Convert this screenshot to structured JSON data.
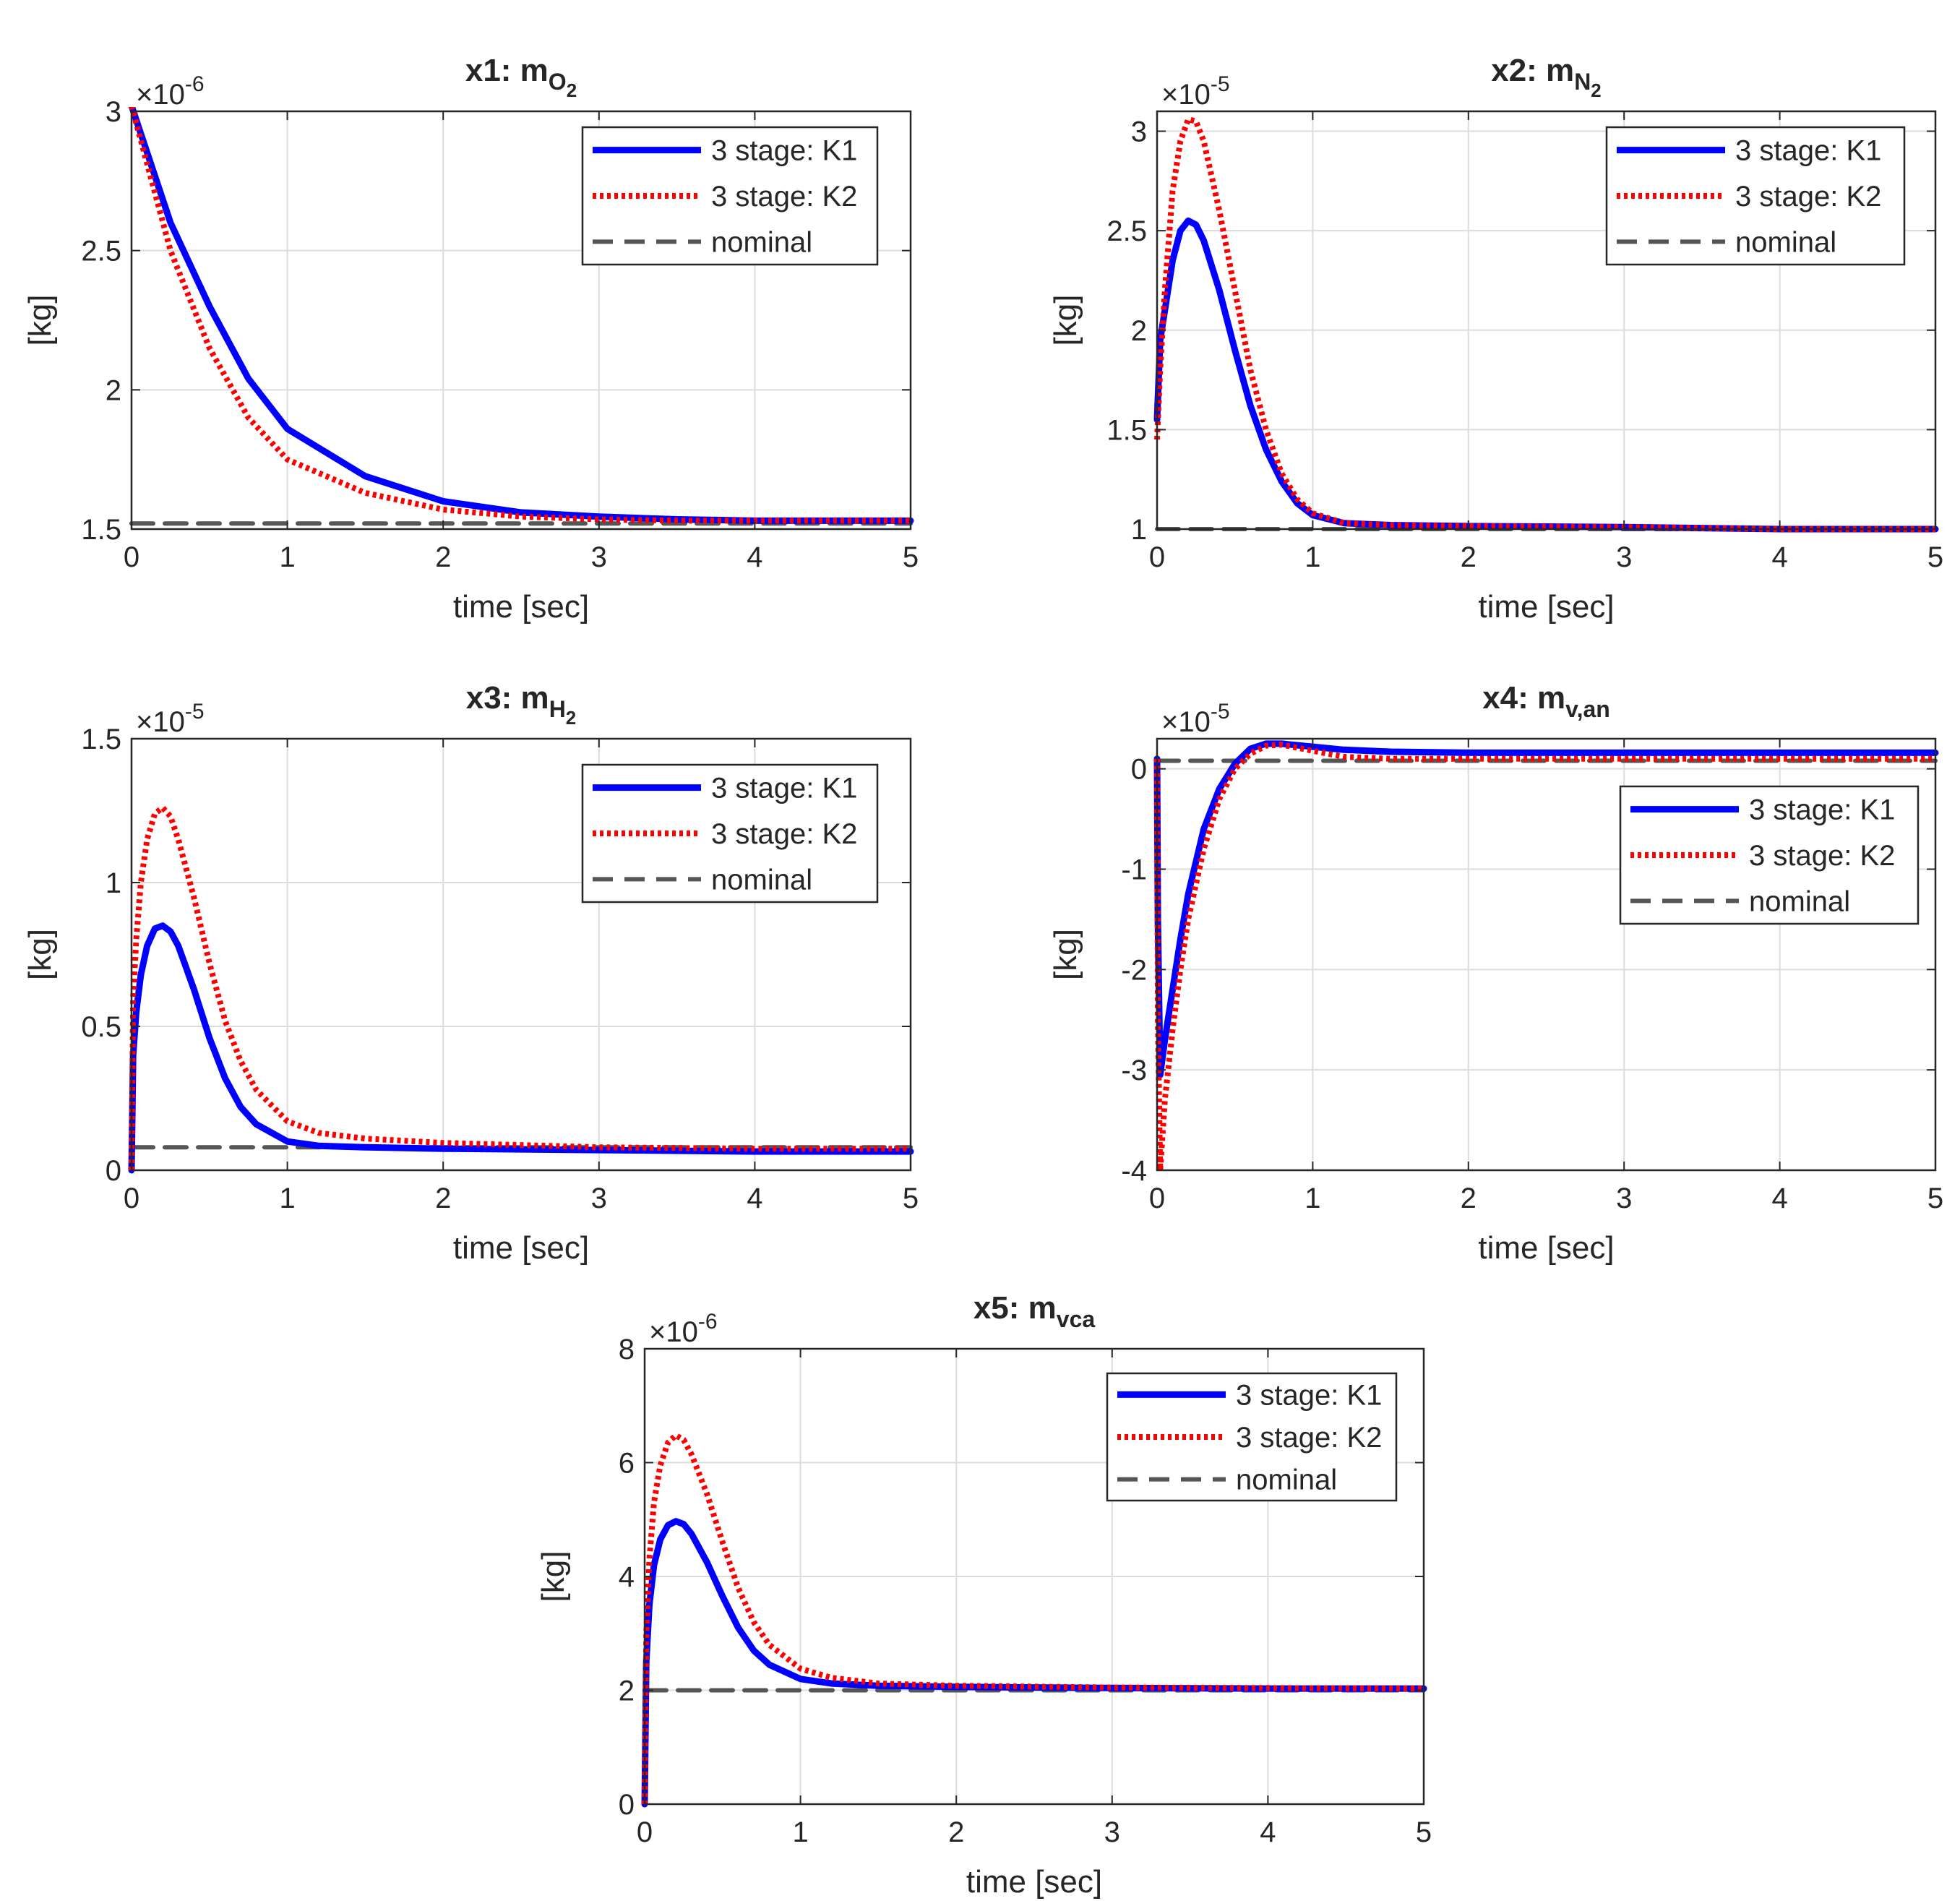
{
  "figure": {
    "colors": {
      "k1": "#0000ff",
      "k2": "#ff0000",
      "nominal": "#555555",
      "grid": "#dcdcdc",
      "axis": "#262626"
    }
  },
  "chart_data": [
    {
      "type": "line",
      "title_main": "x1: m",
      "title_sub": "O",
      "title_subsub": "2",
      "xlabel": "time [sec]",
      "ylabel": "[kg]",
      "exponent_base": "×10",
      "exponent_power": "-6",
      "xlim": [
        0,
        5
      ],
      "ylim": [
        1.5,
        3
      ],
      "xticks": [
        0,
        1,
        2,
        3,
        4,
        5
      ],
      "xtick_labels": [
        "0",
        "1",
        "2",
        "3",
        "4",
        "5"
      ],
      "yticks": [
        1.5,
        2,
        2.5,
        3
      ],
      "ytick_labels": [
        "1.5",
        "2",
        "2.5",
        "3"
      ],
      "legend": [
        "3 stage: K1",
        "3 stage: K2",
        "nominal"
      ],
      "series": [
        {
          "name": "3 stage: K1",
          "x": [
            0,
            0.25,
            0.5,
            0.75,
            1,
            1.5,
            2,
            2.5,
            3,
            3.5,
            4,
            4.5,
            5
          ],
          "y": [
            3.02,
            2.6,
            2.3,
            2.04,
            1.86,
            1.69,
            1.6,
            1.56,
            1.545,
            1.535,
            1.53,
            1.53,
            1.53
          ]
        },
        {
          "name": "3 stage: K2",
          "x": [
            0,
            0.25,
            0.5,
            0.75,
            1,
            1.5,
            2,
            2.5,
            3,
            3.5,
            4,
            4.5,
            5
          ],
          "y": [
            3.02,
            2.5,
            2.15,
            1.9,
            1.75,
            1.63,
            1.57,
            1.545,
            1.535,
            1.53,
            1.53,
            1.53,
            1.53
          ]
        },
        {
          "name": "nominal",
          "x": [
            0,
            5
          ],
          "y": [
            1.52,
            1.52
          ]
        }
      ]
    },
    {
      "type": "line",
      "title_main": "x2: m",
      "title_sub": "N",
      "title_subsub": "2",
      "xlabel": "time [sec]",
      "ylabel": "[kg]",
      "exponent_base": "×10",
      "exponent_power": "-5",
      "xlim": [
        0,
        5
      ],
      "ylim": [
        1,
        3.1
      ],
      "xticks": [
        0,
        1,
        2,
        3,
        4,
        5
      ],
      "xtick_labels": [
        "0",
        "1",
        "2",
        "3",
        "4",
        "5"
      ],
      "yticks": [
        1,
        1.5,
        2,
        2.5,
        3
      ],
      "ytick_labels": [
        "1",
        "1.5",
        "2",
        "2.5",
        "3"
      ],
      "legend": [
        "3 stage: K1",
        "3 stage: K2",
        "nominal"
      ],
      "series": [
        {
          "name": "3 stage: K1",
          "x": [
            0,
            0.02,
            0.05,
            0.1,
            0.15,
            0.2,
            0.25,
            0.3,
            0.4,
            0.5,
            0.6,
            0.7,
            0.8,
            0.9,
            1.0,
            1.2,
            1.5,
            2,
            3,
            4,
            5
          ],
          "y": [
            1.55,
            1.95,
            2.1,
            2.35,
            2.5,
            2.55,
            2.53,
            2.45,
            2.2,
            1.9,
            1.62,
            1.4,
            1.24,
            1.13,
            1.07,
            1.03,
            1.02,
            1.015,
            1.01,
            1.0,
            1.0
          ]
        },
        {
          "name": "3 stage: K2",
          "x": [
            0,
            0.02,
            0.05,
            0.1,
            0.15,
            0.2,
            0.25,
            0.3,
            0.4,
            0.5,
            0.6,
            0.7,
            0.8,
            0.9,
            1.0,
            1.2,
            1.5,
            2,
            3,
            4,
            5
          ],
          "y": [
            1.45,
            1.8,
            2.2,
            2.7,
            2.95,
            3.06,
            3.05,
            2.95,
            2.6,
            2.2,
            1.8,
            1.5,
            1.28,
            1.15,
            1.08,
            1.03,
            1.02,
            1.015,
            1.01,
            1.0,
            1.0
          ]
        },
        {
          "name": "nominal",
          "x": [
            0,
            5
          ],
          "y": [
            1.0,
            1.0
          ]
        }
      ]
    },
    {
      "type": "line",
      "title_main": "x3: m",
      "title_sub": "H",
      "title_subsub": "2",
      "xlabel": "time [sec]",
      "ylabel": "[kg]",
      "exponent_base": "×10",
      "exponent_power": "-5",
      "xlim": [
        0,
        5
      ],
      "ylim": [
        0,
        1.5
      ],
      "xticks": [
        0,
        1,
        2,
        3,
        4,
        5
      ],
      "xtick_labels": [
        "0",
        "1",
        "2",
        "3",
        "4",
        "5"
      ],
      "yticks": [
        0,
        0.5,
        1,
        1.5
      ],
      "ytick_labels": [
        "0",
        "0.5",
        "1",
        "1.5"
      ],
      "legend": [
        "3 stage: K1",
        "3 stage: K2",
        "nominal"
      ],
      "series": [
        {
          "name": "3 stage: K1",
          "x": [
            0,
            0.01,
            0.03,
            0.06,
            0.1,
            0.15,
            0.2,
            0.25,
            0.3,
            0.4,
            0.5,
            0.6,
            0.7,
            0.8,
            1.0,
            1.2,
            1.5,
            2,
            3,
            4,
            5
          ],
          "y": [
            0,
            0.4,
            0.55,
            0.68,
            0.78,
            0.84,
            0.85,
            0.83,
            0.78,
            0.63,
            0.46,
            0.32,
            0.22,
            0.16,
            0.1,
            0.085,
            0.08,
            0.075,
            0.07,
            0.065,
            0.065
          ]
        },
        {
          "name": "3 stage: K2",
          "x": [
            0,
            0.01,
            0.03,
            0.06,
            0.1,
            0.15,
            0.2,
            0.25,
            0.3,
            0.4,
            0.5,
            0.6,
            0.7,
            0.8,
            1.0,
            1.2,
            1.5,
            2,
            3,
            4,
            5
          ],
          "y": [
            0,
            0.6,
            0.8,
            1.0,
            1.15,
            1.24,
            1.26,
            1.23,
            1.15,
            0.95,
            0.72,
            0.52,
            0.38,
            0.28,
            0.17,
            0.13,
            0.11,
            0.095,
            0.08,
            0.075,
            0.075
          ]
        },
        {
          "name": "nominal",
          "x": [
            0,
            5
          ],
          "y": [
            0.08,
            0.08
          ]
        }
      ]
    },
    {
      "type": "line",
      "title_main": "x4: m",
      "title_sub": "v,an",
      "title_subsub": "",
      "xlabel": "time [sec]",
      "ylabel": "[kg]",
      "exponent_base": "×10",
      "exponent_power": "-5",
      "xlim": [
        0,
        5
      ],
      "ylim": [
        -4,
        0.3
      ],
      "xticks": [
        0,
        1,
        2,
        3,
        4,
        5
      ],
      "xtick_labels": [
        "0",
        "1",
        "2",
        "3",
        "4",
        "5"
      ],
      "yticks": [
        -4,
        -3,
        -2,
        -1,
        0
      ],
      "ytick_labels": [
        "-4",
        "-3",
        "-2",
        "-1",
        "0"
      ],
      "legend": [
        "3 stage: K1",
        "3 stage: K2",
        "nominal"
      ],
      "series": [
        {
          "name": "3 stage: K1",
          "x": [
            0,
            0.005,
            0.02,
            0.05,
            0.1,
            0.15,
            0.2,
            0.3,
            0.4,
            0.5,
            0.6,
            0.7,
            0.8,
            1.0,
            1.2,
            1.5,
            2,
            3,
            4,
            5
          ],
          "y": [
            0.1,
            -1.5,
            -3.05,
            -2.7,
            -2.2,
            -1.7,
            -1.25,
            -0.6,
            -0.2,
            0.05,
            0.2,
            0.25,
            0.25,
            0.22,
            0.19,
            0.17,
            0.16,
            0.16,
            0.16,
            0.16
          ]
        },
        {
          "name": "3 stage: K2",
          "x": [
            0,
            0.005,
            0.02,
            0.05,
            0.1,
            0.15,
            0.2,
            0.3,
            0.4,
            0.5,
            0.6,
            0.7,
            0.8,
            1.0,
            1.2,
            1.5,
            2,
            3,
            4,
            5
          ],
          "y": [
            0.1,
            -2.5,
            -4.0,
            -3.3,
            -2.6,
            -2.0,
            -1.5,
            -0.8,
            -0.3,
            0.0,
            0.15,
            0.23,
            0.24,
            0.18,
            0.12,
            0.1,
            0.1,
            0.1,
            0.1,
            0.1
          ]
        },
        {
          "name": "nominal",
          "x": [
            0,
            5
          ],
          "y": [
            0.08,
            0.08
          ]
        }
      ]
    },
    {
      "type": "line",
      "title_main": "x5: m",
      "title_sub": "vca",
      "title_subsub": "",
      "xlabel": "time [sec]",
      "ylabel": "[kg]",
      "exponent_base": "×10",
      "exponent_power": "-6",
      "xlim": [
        0,
        5
      ],
      "ylim": [
        0,
        8
      ],
      "xticks": [
        0,
        1,
        2,
        3,
        4,
        5
      ],
      "xtick_labels": [
        "0",
        "1",
        "2",
        "3",
        "4",
        "5"
      ],
      "yticks": [
        0,
        2,
        4,
        6,
        8
      ],
      "ytick_labels": [
        "0",
        "2",
        "4",
        "6",
        "8"
      ],
      "legend": [
        "3 stage: K1",
        "3 stage: K2",
        "nominal"
      ],
      "series": [
        {
          "name": "3 stage: K1",
          "x": [
            0,
            0.01,
            0.03,
            0.06,
            0.1,
            0.15,
            0.2,
            0.25,
            0.3,
            0.4,
            0.5,
            0.6,
            0.7,
            0.8,
            1.0,
            1.2,
            1.5,
            2,
            3,
            4,
            5
          ],
          "y": [
            0,
            2.5,
            3.5,
            4.2,
            4.65,
            4.9,
            4.97,
            4.92,
            4.75,
            4.25,
            3.65,
            3.1,
            2.7,
            2.45,
            2.2,
            2.12,
            2.08,
            2.06,
            2.04,
            2.03,
            2.03
          ]
        },
        {
          "name": "3 stage: K2",
          "x": [
            0,
            0.01,
            0.03,
            0.06,
            0.1,
            0.15,
            0.2,
            0.25,
            0.3,
            0.4,
            0.5,
            0.6,
            0.7,
            0.8,
            1.0,
            1.2,
            1.5,
            2,
            3,
            4,
            5
          ],
          "y": [
            0,
            3.0,
            4.3,
            5.3,
            5.95,
            6.35,
            6.48,
            6.4,
            6.15,
            5.45,
            4.6,
            3.8,
            3.2,
            2.8,
            2.38,
            2.22,
            2.12,
            2.08,
            2.05,
            2.04,
            2.03
          ]
        },
        {
          "name": "nominal",
          "x": [
            0,
            5
          ],
          "y": [
            2.0,
            2.0
          ]
        }
      ]
    }
  ]
}
